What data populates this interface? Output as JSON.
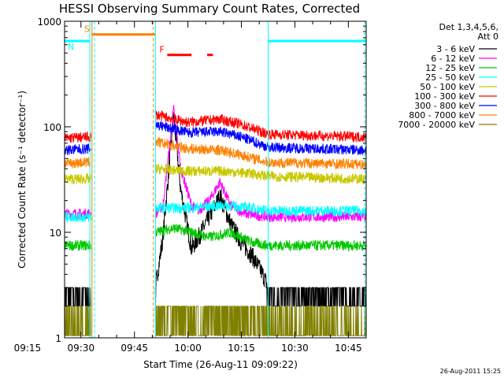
{
  "chart_data": {
    "type": "line",
    "title": "HESSI Observing Summary Count Rates, Corrected",
    "xlabel": "Start Time (26-Aug-11 09:09:22)",
    "ylabel": "Corrected Count Rate (s⁻¹ detector⁻¹)",
    "yscale": "log",
    "ylim": [
      1,
      1000
    ],
    "xlim_minutes": [
      565.4,
      650.0
    ],
    "x_ticks": [
      "09:15",
      "09:30",
      "09:45",
      "10:00",
      "10:15",
      "10:30",
      "10:45"
    ],
    "y_ticks": [
      "1",
      "10",
      "100",
      "1000"
    ],
    "legend_header": [
      "Det 1,3,4,5,6,",
      "Att 0"
    ],
    "grid": false,
    "legend_position": "right",
    "data_gap_minutes": [
      [
        572.8,
        590.8
      ]
    ],
    "series": [
      {
        "name": "3 - 6 keV",
        "color": "#000000",
        "points": [
          [
            565.4,
            3
          ],
          [
            572.5,
            3
          ],
          [
            590.9,
            3
          ],
          [
            593.0,
            9
          ],
          [
            596.0,
            130
          ],
          [
            598.0,
            25
          ],
          [
            601.0,
            7
          ],
          [
            603.0,
            9
          ],
          [
            606.0,
            14
          ],
          [
            609.0,
            22
          ],
          [
            612.0,
            12
          ],
          [
            615.0,
            8
          ],
          [
            618.0,
            6
          ],
          [
            621.0,
            4
          ],
          [
            622.5,
            3
          ],
          [
            650.0,
            3
          ]
        ]
      },
      {
        "name": "6 - 12 keV",
        "color": "#ff00ff",
        "points": [
          [
            565.4,
            15
          ],
          [
            572.5,
            15
          ],
          [
            590.9,
            15
          ],
          [
            593.0,
            18
          ],
          [
            596.0,
            150
          ],
          [
            598.0,
            40
          ],
          [
            601.0,
            18
          ],
          [
            603.0,
            16
          ],
          [
            606.0,
            20
          ],
          [
            609.0,
            30
          ],
          [
            612.0,
            18
          ],
          [
            616.0,
            15
          ],
          [
            622.5,
            14
          ],
          [
            650.0,
            14
          ]
        ]
      },
      {
        "name": "12 - 25 keV",
        "color": "#00c800",
        "points": [
          [
            565.4,
            7.5
          ],
          [
            572.5,
            7.5
          ],
          [
            590.9,
            10
          ],
          [
            596.0,
            11
          ],
          [
            601.0,
            10
          ],
          [
            606.0,
            9
          ],
          [
            612.0,
            10
          ],
          [
            618.0,
            8
          ],
          [
            622.5,
            7.5
          ],
          [
            650.0,
            7.5
          ]
        ]
      },
      {
        "name": "25 - 50 keV",
        "color": "#00ffff",
        "points": [
          [
            565.4,
            14
          ],
          [
            572.5,
            14
          ],
          [
            590.9,
            17
          ],
          [
            600.0,
            17
          ],
          [
            610.0,
            18
          ],
          [
            618.0,
            17
          ],
          [
            622.5,
            16
          ],
          [
            650.0,
            16
          ]
        ]
      },
      {
        "name": "50 - 100 keV",
        "color": "#c8c800",
        "points": [
          [
            565.4,
            32
          ],
          [
            572.5,
            32
          ],
          [
            590.9,
            40
          ],
          [
            600.0,
            38
          ],
          [
            610.0,
            38
          ],
          [
            618.0,
            36
          ],
          [
            622.5,
            34
          ],
          [
            650.0,
            32
          ]
        ]
      },
      {
        "name": "100 - 300 keV",
        "color": "#ff0000",
        "points": [
          [
            565.4,
            78
          ],
          [
            572.5,
            80
          ],
          [
            590.9,
            130
          ],
          [
            600.0,
            110
          ],
          [
            609.0,
            118
          ],
          [
            615.0,
            105
          ],
          [
            622.5,
            85
          ],
          [
            650.0,
            80
          ]
        ]
      },
      {
        "name": "300 - 800 keV",
        "color": "#0000ff",
        "points": [
          [
            565.4,
            60
          ],
          [
            572.5,
            62
          ],
          [
            590.9,
            105
          ],
          [
            600.0,
            88
          ],
          [
            609.0,
            90
          ],
          [
            615.0,
            80
          ],
          [
            622.5,
            64
          ],
          [
            650.0,
            60
          ]
        ]
      },
      {
        "name": "800 - 7000 keV",
        "color": "#ff8000",
        "points": [
          [
            565.4,
            45
          ],
          [
            572.5,
            46
          ],
          [
            590.9,
            72
          ],
          [
            600.0,
            62
          ],
          [
            609.0,
            60
          ],
          [
            615.0,
            54
          ],
          [
            622.5,
            46
          ],
          [
            650.0,
            44
          ]
        ]
      },
      {
        "name": "7000 - 20000 keV",
        "color": "#808000",
        "points": [
          [
            565.4,
            1.5
          ],
          [
            572.5,
            1.5
          ],
          [
            590.9,
            1.5
          ],
          [
            650.0,
            1.5
          ]
        ]
      }
    ],
    "annotations": [
      {
        "label": "S",
        "color": "#ff8000",
        "level": 750,
        "x_range": [
          573.1,
          590.8
        ]
      },
      {
        "label": "N",
        "color": "#00ffff",
        "level": 650,
        "x_range": [
          565.4,
          572.4
        ]
      },
      {
        "label": "",
        "color": "#00ffff",
        "level": 650,
        "x_range": [
          622.6,
          650.0
        ]
      },
      {
        "label": "F",
        "color": "#ff0000",
        "level": 480,
        "x_range": [
          594.2,
          601.0
        ]
      },
      {
        "label": "",
        "color": "#ff0000",
        "level": 480,
        "x_range": [
          605.4,
          607.0
        ]
      }
    ],
    "vertical_markers": [
      {
        "color": "#00ffff",
        "x": 572.5,
        "style": "solid"
      },
      {
        "color": "#00ffff",
        "x": 590.9,
        "style": "solid"
      },
      {
        "color": "#00ffff",
        "x": 622.5,
        "style": "solid"
      },
      {
        "color": "#00ffff",
        "x": 573.8,
        "style": "dashed"
      },
      {
        "color": "#00ffff",
        "x": 649.6,
        "style": "dashed"
      },
      {
        "color": "#ff8000",
        "x": 573.1,
        "style": "solid"
      },
      {
        "color": "#ff8000",
        "x": 590.3,
        "style": "dashed"
      }
    ]
  },
  "timestamp": "26-Aug-2011 15:25"
}
